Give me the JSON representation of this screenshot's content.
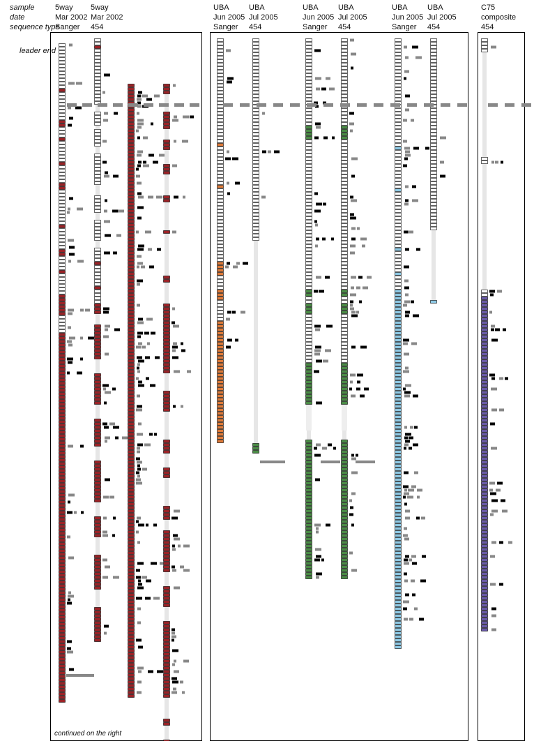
{
  "row_labels": {
    "sample": "sample",
    "date": "date",
    "sequence_type": "sequence type",
    "leader_end": "leader end"
  },
  "columns": [
    {
      "sample": "5way",
      "date": "Mar 2002",
      "type": "Sanger"
    },
    {
      "sample": "5way",
      "date": "Mar 2002",
      "type": "454"
    },
    {
      "sample": "UBA",
      "date": "Jun 2005",
      "type": "Sanger"
    },
    {
      "sample": "UBA",
      "date": "Jul 2005",
      "type": "454"
    },
    {
      "sample": "UBA",
      "date": "Jun 2005",
      "type": "Sanger"
    },
    {
      "sample": "UBA",
      "date": "Jul 2005",
      "type": "454"
    },
    {
      "sample": "UBA",
      "date": "Jun 2005",
      "type": "Sanger"
    },
    {
      "sample": "UBA",
      "date": "Jul 2005",
      "type": "454"
    },
    {
      "sample": "C75",
      "date": "composite",
      "type": "454"
    }
  ],
  "footnote": "continued on the right",
  "colors": {
    "5way": "#9b2226",
    "uba_orange": "#e07b39",
    "uba_green": "#4a8c45",
    "uba_blue": "#8ecae6",
    "c75": "#6a5aa8",
    "match_black": "#000000",
    "match_gray": "#888888",
    "outline": "#000000",
    "thread": "#999999"
  }
}
